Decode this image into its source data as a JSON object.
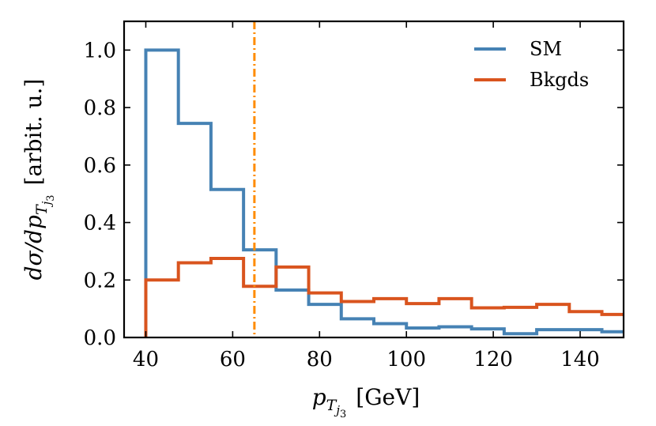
{
  "chart_data": {
    "type": "line",
    "title": "",
    "xlabel": {
      "main": "p",
      "sub": "T",
      "subsub": "j",
      "subsubsub": "3",
      "unit": "[GeV]"
    },
    "ylabel": {
      "main": "dσ/dp",
      "sub": "T",
      "subsub": "j",
      "subsubsub": "3",
      "unit": "[arbit. u.]"
    },
    "xlim": [
      35,
      150
    ],
    "ylim": [
      0.0,
      1.1
    ],
    "xticks": [
      40,
      60,
      80,
      100,
      120,
      140
    ],
    "xtick_labels": [
      "40",
      "60",
      "80",
      "100",
      "120",
      "140"
    ],
    "yticks": [
      0.0,
      0.2,
      0.4,
      0.6,
      0.8,
      1.0
    ],
    "ytick_labels": [
      "0.0",
      "0.2",
      "0.4",
      "0.6",
      "0.8",
      "1.0"
    ],
    "legend_position": "top-right",
    "bin_edges": [
      40,
      47.5,
      55,
      62.5,
      70,
      77.5,
      85,
      92.5,
      100,
      107.5,
      115,
      122.5,
      130,
      137.5,
      145,
      150
    ],
    "series": [
      {
        "name": "SM",
        "color": "#4682b4",
        "style": "step",
        "values": [
          1.0,
          0.745,
          0.515,
          0.305,
          0.165,
          0.115,
          0.065,
          0.048,
          0.033,
          0.037,
          0.03,
          0.013,
          0.027,
          0.027,
          0.02
        ]
      },
      {
        "name": "Bkgds",
        "color": "#d9541e",
        "style": "step",
        "values": [
          0.2,
          0.26,
          0.275,
          0.178,
          0.245,
          0.155,
          0.125,
          0.135,
          0.118,
          0.135,
          0.103,
          0.105,
          0.115,
          0.09,
          0.08
        ]
      }
    ],
    "annotations": [
      {
        "type": "vline",
        "x": 65,
        "color": "#ff8c00",
        "style": "dashdot"
      }
    ]
  }
}
